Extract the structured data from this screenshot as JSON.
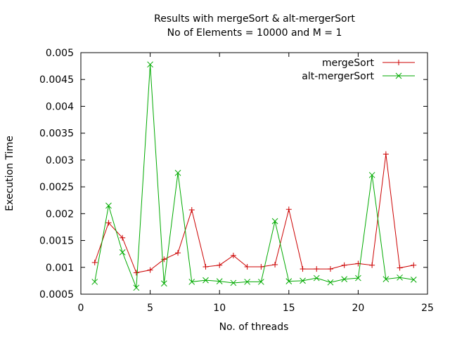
{
  "chart_data": {
    "type": "line",
    "title_lines": [
      "Results with mergeSort & alt-mergerSort",
      "No of Elements = 10000 and M = 1"
    ],
    "xlabel": "No. of threads",
    "ylabel": "Execution Time",
    "xlim": [
      0,
      25
    ],
    "ylim": [
      0.0005,
      0.005
    ],
    "xticks": [
      0,
      5,
      10,
      15,
      20,
      25
    ],
    "xtick_labels": [
      "0",
      "5",
      "10",
      "15",
      "20",
      "25"
    ],
    "yticks": [
      0.0005,
      0.001,
      0.0015,
      0.002,
      0.0025,
      0.003,
      0.0035,
      0.004,
      0.0045,
      0.005
    ],
    "ytick_labels": [
      "0.0005",
      "0.001",
      "0.0015",
      "0.002",
      "0.0025",
      "0.003",
      "0.0035",
      "0.004",
      "0.0045",
      "0.005"
    ],
    "grid": false,
    "legend_position": "top-right",
    "x": [
      1,
      2,
      3,
      4,
      5,
      6,
      7,
      8,
      9,
      10,
      11,
      12,
      13,
      14,
      15,
      16,
      17,
      18,
      19,
      20,
      21,
      22,
      23,
      24
    ],
    "series": [
      {
        "name": "mergeSort",
        "color": "#cc0000",
        "marker": "plus",
        "values": [
          0.00109,
          0.00183,
          0.00155,
          0.0009,
          0.00095,
          0.00115,
          0.00127,
          0.00207,
          0.00101,
          0.00104,
          0.00122,
          0.00101,
          0.00101,
          0.00105,
          0.00208,
          0.00097,
          0.00097,
          0.00097,
          0.00104,
          0.00107,
          0.00104,
          0.00311,
          0.00099,
          0.00104
        ]
      },
      {
        "name": "alt-mergerSort",
        "color": "#00aa00",
        "marker": "cross",
        "values": [
          0.00073,
          0.00215,
          0.00128,
          0.00062,
          0.00478,
          0.0007,
          0.00276,
          0.00073,
          0.00076,
          0.00074,
          0.00071,
          0.00073,
          0.00073,
          0.00186,
          0.00074,
          0.00075,
          0.0008,
          0.00072,
          0.00078,
          0.0008,
          0.00272,
          0.00078,
          0.00081,
          0.00077
        ]
      }
    ]
  }
}
